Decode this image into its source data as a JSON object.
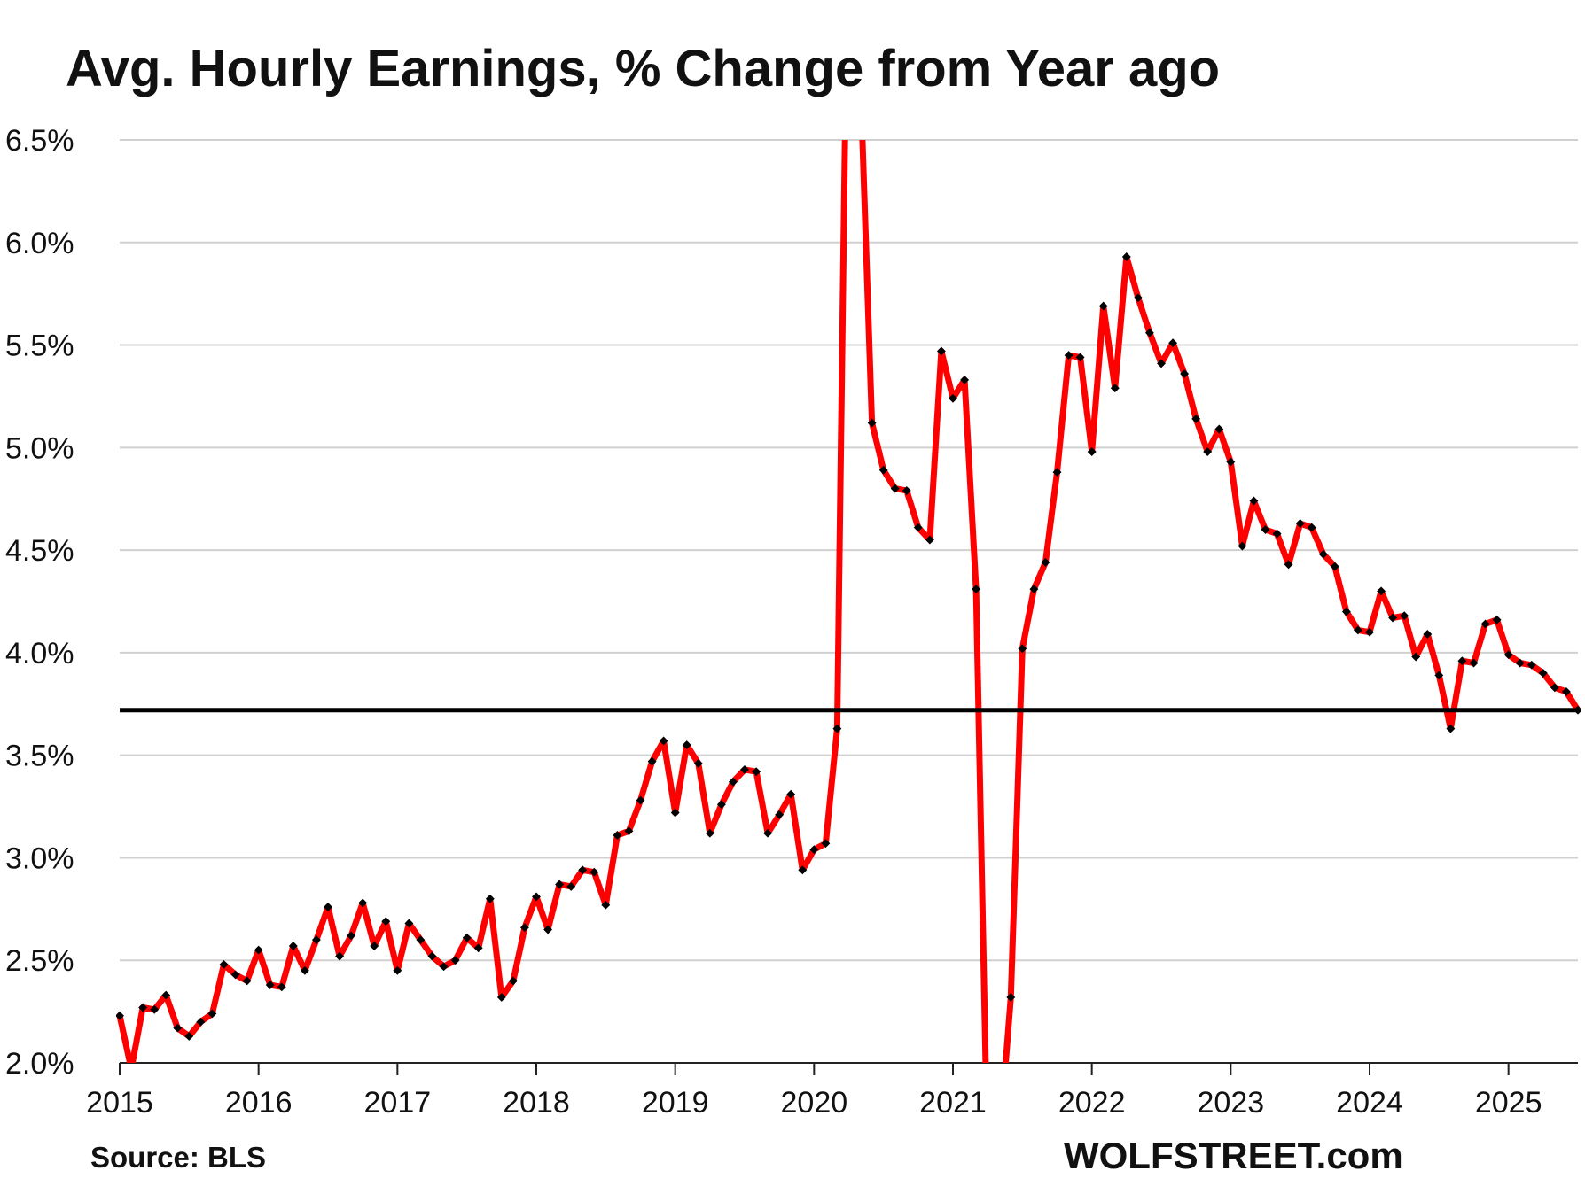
{
  "chart_data": {
    "type": "line",
    "title": "Avg. Hourly Earnings, % Change from Year ago",
    "source": "Source: BLS",
    "brand": "WOLFSTREET.com",
    "xlabel": "",
    "ylabel": "",
    "x_start": "2015-01",
    "frequency": "monthly",
    "xlim": [
      2015.0,
      2025.5
    ],
    "ylim": [
      2.0,
      6.5
    ],
    "ytick_values": [
      2.0,
      2.5,
      3.0,
      3.5,
      4.0,
      4.5,
      5.0,
      5.5,
      6.0,
      6.5
    ],
    "ytick_labels": [
      "2.0%",
      "2.5%",
      "3.0%",
      "3.5%",
      "4.0%",
      "4.5%",
      "5.0%",
      "5.5%",
      "6.0%",
      "6.5%"
    ],
    "xtick_values": [
      2015,
      2016,
      2017,
      2018,
      2019,
      2020,
      2021,
      2022,
      2023,
      2024,
      2025
    ],
    "xtick_labels": [
      "2015",
      "2016",
      "2017",
      "2018",
      "2019",
      "2020",
      "2021",
      "2022",
      "2023",
      "2024",
      "2025"
    ],
    "grid": "horizontal",
    "reference_line": {
      "y": 3.72
    },
    "colors": {
      "line": "#ff0000",
      "marker": "#000000",
      "reference": "#000000",
      "grid": "#d0d0d0"
    },
    "series": [
      {
        "values": [
          2.23,
          1.97,
          2.27,
          2.26,
          2.33,
          2.17,
          2.13,
          2.2,
          2.24,
          2.48,
          2.43,
          2.4,
          2.55,
          2.38,
          2.37,
          2.57,
          2.45,
          2.6,
          2.76,
          2.52,
          2.62,
          2.78,
          2.57,
          2.69,
          2.45,
          2.68,
          2.6,
          2.52,
          2.47,
          2.5,
          2.61,
          2.56,
          2.8,
          2.32,
          2.4,
          2.66,
          2.81,
          2.65,
          2.87,
          2.86,
          2.94,
          2.93,
          2.77,
          3.11,
          3.13,
          3.28,
          3.47,
          3.57,
          3.22,
          3.55,
          3.46,
          3.12,
          3.26,
          3.37,
          3.43,
          3.42,
          3.12,
          3.21,
          3.31,
          2.94,
          3.04,
          3.07,
          3.63,
          7.9,
          6.8,
          5.12,
          4.89,
          4.8,
          4.79,
          4.61,
          4.55,
          5.47,
          5.24,
          5.33,
          4.31,
          1.5,
          1.6,
          2.32,
          4.02,
          4.31,
          4.44,
          4.88,
          5.45,
          5.44,
          4.98,
          5.69,
          5.29,
          5.93,
          5.73,
          5.56,
          5.41,
          5.51,
          5.36,
          5.14,
          4.98,
          5.09,
          4.93,
          4.52,
          4.74,
          4.6,
          4.58,
          4.43,
          4.63,
          4.61,
          4.48,
          4.42,
          4.2,
          4.11,
          4.1,
          4.3,
          4.17,
          4.18,
          3.98,
          4.09,
          3.89,
          3.63,
          3.96,
          3.95,
          4.14,
          4.16,
          3.99,
          3.95,
          3.94,
          3.9,
          3.83,
          3.81,
          3.72
        ]
      }
    ]
  }
}
